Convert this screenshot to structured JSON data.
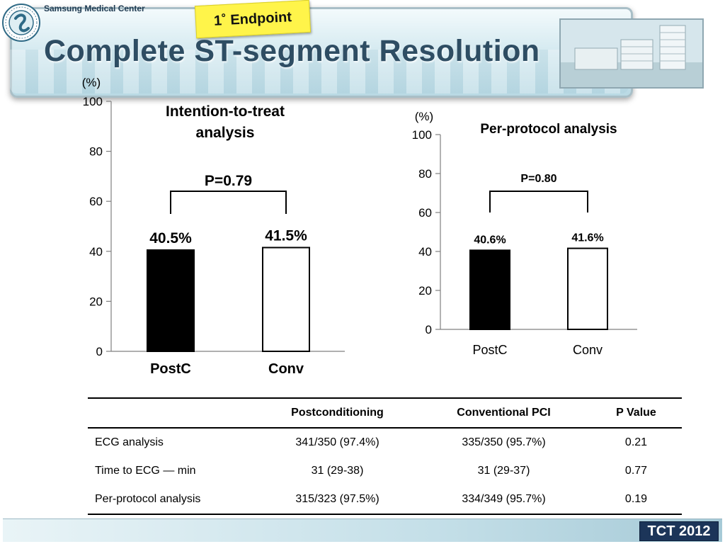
{
  "header": {
    "org_name": "Samsung Medical Center",
    "title": "Complete ST-segment Resolution",
    "endpoint_label": "1˚ Endpoint"
  },
  "colors": {
    "banner": "#d7ebf1",
    "title": "#2e4d63",
    "endpoint_note": "#fff44a",
    "bar_postc": "#000000",
    "bar_conv": "#ffffff",
    "footer_badge": "#1c3559"
  },
  "chart_data": [
    {
      "type": "bar",
      "title": "Intention-to-treat analysis",
      "title_lines": [
        "Intention-to-treat",
        "analysis"
      ],
      "ylabel": "(%)",
      "ylim": [
        0,
        100
      ],
      "yticks": [
        0,
        20,
        40,
        60,
        80,
        100
      ],
      "categories": [
        "PostC",
        "Conv"
      ],
      "values": [
        40.5,
        41.5
      ],
      "value_labels": [
        "40.5%",
        "41.5%"
      ],
      "bar_fills": [
        "#000000",
        "#ffffff"
      ],
      "p_value": "P=0.79"
    },
    {
      "type": "bar",
      "title": "Per-protocol analysis",
      "ylabel": "(%)",
      "ylim": [
        0,
        100
      ],
      "yticks": [
        0,
        20,
        40,
        60,
        80,
        100
      ],
      "categories": [
        "PostC",
        "Conv"
      ],
      "values": [
        40.6,
        41.6
      ],
      "value_labels": [
        "40.6%",
        "41.6%"
      ],
      "bar_fills": [
        "#000000",
        "#ffffff"
      ],
      "p_value": "P=0.80"
    }
  ],
  "table": {
    "columns": [
      "",
      "Postconditioning",
      "Conventional PCI",
      "P Value"
    ],
    "rows": [
      [
        "ECG analysis",
        "341/350 (97.4%)",
        "335/350 (95.7%)",
        "0.21"
      ],
      [
        "Time to ECG — min",
        "31 (29-38)",
        "31 (29-37)",
        "0.77"
      ],
      [
        "Per-protocol analysis",
        "315/323 (97.5%)",
        "334/349 (95.7%)",
        "0.19"
      ]
    ]
  },
  "footer": {
    "badge": "TCT 2012"
  },
  "icons": {
    "logo": "hospital-seal-icon",
    "photo": "hospital-building-photo"
  }
}
